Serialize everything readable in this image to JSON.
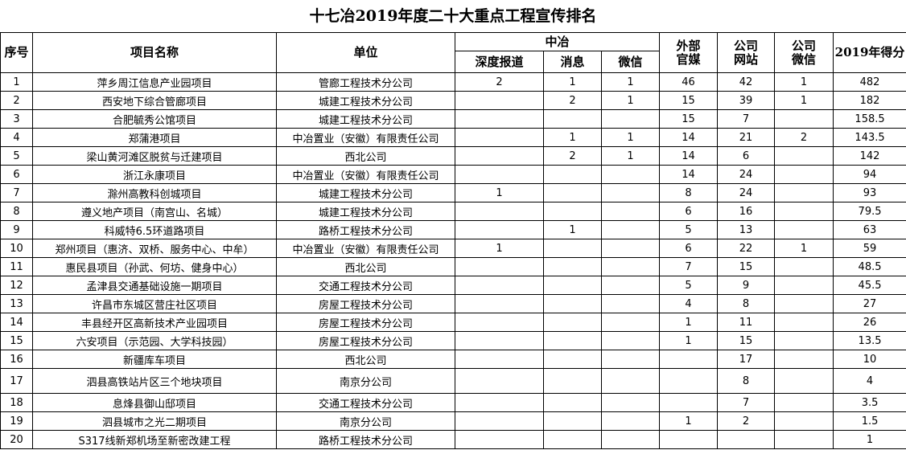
{
  "title": "十七冶2019年度二十大重点工程宣传排名",
  "headers": {
    "seq": "序号",
    "name": "项目名称",
    "unit": "单位",
    "zhongye": "中冶",
    "deep": "深度报道",
    "news": "消息",
    "wechat": "微信",
    "external": "外部官媒",
    "site": "公司网站",
    "company_wechat": "公司微信",
    "score": "2019年得分"
  },
  "rows": [
    {
      "seq": "1",
      "name": "萍乡周江信息产业园项目",
      "unit": "管廊工程技术分公司",
      "deep": "2",
      "news": "1",
      "wechat": "1",
      "external": "46",
      "site": "42",
      "company_wechat": "1",
      "score": "482"
    },
    {
      "seq": "2",
      "name": "西安地下综合管廊项目",
      "unit": "城建工程技术分公司",
      "deep": "",
      "news": "2",
      "wechat": "1",
      "external": "15",
      "site": "39",
      "company_wechat": "1",
      "score": "182"
    },
    {
      "seq": "3",
      "name": "合肥毓秀公馆项目",
      "unit": "城建工程技术分公司",
      "deep": "",
      "news": "",
      "wechat": "",
      "external": "15",
      "site": "7",
      "company_wechat": "",
      "score": "158.5"
    },
    {
      "seq": "4",
      "name": "郑蒲港项目",
      "unit": "中冶置业（安徽）有限责任公司",
      "deep": "",
      "news": "1",
      "wechat": "1",
      "external": "14",
      "site": "21",
      "company_wechat": "2",
      "score": "143.5"
    },
    {
      "seq": "5",
      "name": "梁山黄河滩区脱贫与迁建项目",
      "unit": "西北公司",
      "deep": "",
      "news": "2",
      "wechat": "1",
      "external": "14",
      "site": "6",
      "company_wechat": "",
      "score": "142"
    },
    {
      "seq": "6",
      "name": "浙江永康项目",
      "unit": "中冶置业（安徽）有限责任公司",
      "deep": "",
      "news": "",
      "wechat": "",
      "external": "14",
      "site": "24",
      "company_wechat": "",
      "score": "94"
    },
    {
      "seq": "7",
      "name": "滁州高教科创城项目",
      "unit": "城建工程技术分公司",
      "deep": "1",
      "news": "",
      "wechat": "",
      "external": "8",
      "site": "24",
      "company_wechat": "",
      "score": "93"
    },
    {
      "seq": "8",
      "name": "遵义地产项目（南宫山、名城）",
      "unit": "城建工程技术分公司",
      "deep": "",
      "news": "",
      "wechat": "",
      "external": "6",
      "site": "16",
      "company_wechat": "",
      "score": "79.5"
    },
    {
      "seq": "9",
      "name": "科威特6.5环道路项目",
      "unit": "路桥工程技术分公司",
      "deep": "",
      "news": "1",
      "wechat": "",
      "external": "5",
      "site": "13",
      "company_wechat": "",
      "score": "63"
    },
    {
      "seq": "10",
      "name": "郑州项目（惠济、双桥、服务中心、中牟）",
      "unit": "中冶置业（安徽）有限责任公司",
      "deep": "1",
      "news": "",
      "wechat": "",
      "external": "6",
      "site": "22",
      "company_wechat": "1",
      "score": "59"
    },
    {
      "seq": "11",
      "name": "惠民县项目（孙武、何坊、健身中心）",
      "unit": "西北公司",
      "deep": "",
      "news": "",
      "wechat": "",
      "external": "7",
      "site": "15",
      "company_wechat": "",
      "score": "48.5"
    },
    {
      "seq": "12",
      "name": "孟津县交通基础设施一期项目",
      "unit": "交通工程技术分公司",
      "deep": "",
      "news": "",
      "wechat": "",
      "external": "5",
      "site": "9",
      "company_wechat": "",
      "score": "45.5"
    },
    {
      "seq": "13",
      "name": "许昌市东城区营庄社区项目",
      "unit": "房屋工程技术分公司",
      "deep": "",
      "news": "",
      "wechat": "",
      "external": "4",
      "site": "8",
      "company_wechat": "",
      "score": "27"
    },
    {
      "seq": "14",
      "name": "丰县经开区高新技术产业园项目",
      "unit": "房屋工程技术分公司",
      "deep": "",
      "news": "",
      "wechat": "",
      "external": "1",
      "site": "11",
      "company_wechat": "",
      "score": "26"
    },
    {
      "seq": "15",
      "name": "六安项目（示范园、大学科技园）",
      "unit": "房屋工程技术分公司",
      "deep": "",
      "news": "",
      "wechat": "",
      "external": "1",
      "site": "15",
      "company_wechat": "",
      "score": "13.5"
    },
    {
      "seq": "16",
      "name": "新疆库车项目",
      "unit": "西北公司",
      "deep": "",
      "news": "",
      "wechat": "",
      "external": "",
      "site": "17",
      "company_wechat": "",
      "score": "10"
    },
    {
      "seq": "17",
      "name": "泗县高铁站片区三个地块项目",
      "unit": "南京分公司",
      "deep": "",
      "news": "",
      "wechat": "",
      "external": "",
      "site": "8",
      "company_wechat": "",
      "score": "4"
    },
    {
      "seq": "18",
      "name": "息烽县御山邸项目",
      "unit": "交通工程技术分公司",
      "deep": "",
      "news": "",
      "wechat": "",
      "external": "",
      "site": "7",
      "company_wechat": "",
      "score": "3.5"
    },
    {
      "seq": "19",
      "name": "泗县城市之光二期项目",
      "unit": "南京分公司",
      "deep": "",
      "news": "",
      "wechat": "",
      "external": "1",
      "site": "2",
      "company_wechat": "",
      "score": "1.5"
    },
    {
      "seq": "20",
      "name": "S317线新郑机场至新密改建工程",
      "unit": "路桥工程技术分公司",
      "deep": "",
      "news": "",
      "wechat": "",
      "external": "",
      "site": "",
      "company_wechat": "",
      "score": "1"
    }
  ]
}
